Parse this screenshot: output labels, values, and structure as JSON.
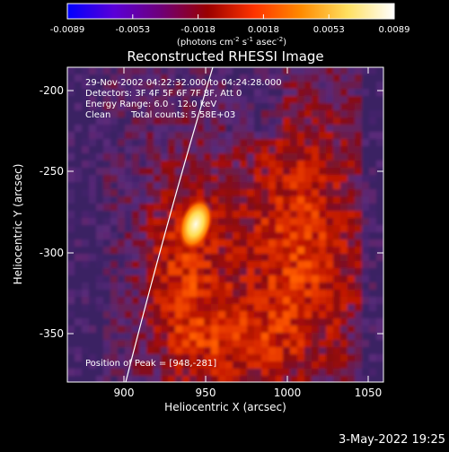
{
  "colorbar": {
    "ticks": [
      "-0.0089",
      "-0.0053",
      "-0.0018",
      "0.0018",
      "0.0053",
      "0.0089"
    ],
    "unit_label": "(photons cm",
    "unit_exp1": "-2",
    "unit_mid": " s",
    "unit_exp2": "-1",
    "unit_mid2": " asec",
    "unit_exp3": "-2",
    "unit_end": ")",
    "stops": [
      "#0000ff",
      "#5a00d8",
      "#6e0078",
      "#9a0000",
      "#ff3300",
      "#ff8a00",
      "#ffe060",
      "#ffffff"
    ]
  },
  "plot": {
    "title": "Reconstructed RHESSI Image",
    "info": {
      "line1": "29-Nov-2002 04:22:32.000 to 04:24:28.000",
      "line2": "Detectors: 3F 4F 5F 6F 7F 8F, Att 0",
      "line3": "Energy Range: 6.0 - 12.0 keV",
      "line4_a": "Clean",
      "line4_b": "Total counts: 5.58E+03"
    },
    "peak_label": "Position of Peak = [948,-281]",
    "xlabel": "Heliocentric X (arcsec)",
    "ylabel": "Heliocentric Y (arcsec)",
    "x_ticks": [
      "900",
      "950",
      "1000",
      "1050"
    ],
    "y_ticks": [
      "-200",
      "-250",
      "-300",
      "-350"
    ]
  },
  "footer": {
    "timestamp": "3-May-2022 19:25"
  }
}
